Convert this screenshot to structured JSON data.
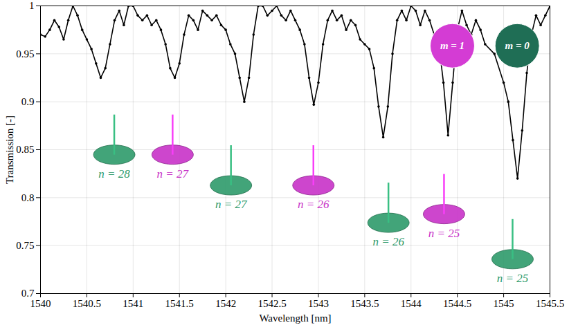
{
  "chart_data": {
    "type": "line",
    "x_label": "Wavelength [nm]",
    "y_label": "Transmission [-]",
    "xlim": [
      1540,
      1545.5
    ],
    "ylim": [
      0.7,
      1
    ],
    "xticks": [
      1540,
      1540.5,
      1541,
      1541.5,
      1542,
      1542.5,
      1543,
      1543.5,
      1544,
      1544.5,
      1545,
      1545.5
    ],
    "yticks": [
      0.7,
      0.75,
      0.8,
      0.85,
      0.9,
      0.95,
      1
    ],
    "grid": true,
    "series": [
      {
        "color": "#000000",
        "marker": "circle",
        "x": [
          1540.0,
          1540.05,
          1540.1,
          1540.15,
          1540.2,
          1540.25,
          1540.3,
          1540.35,
          1540.4,
          1540.45,
          1540.5,
          1540.55,
          1540.6,
          1540.65,
          1540.7,
          1540.75,
          1540.8,
          1540.85,
          1540.9,
          1540.95,
          1541.0,
          1541.05,
          1541.1,
          1541.15,
          1541.2,
          1541.25,
          1541.3,
          1541.35,
          1541.4,
          1541.45,
          1541.5,
          1541.55,
          1541.6,
          1541.65,
          1541.7,
          1541.75,
          1541.8,
          1541.85,
          1541.9,
          1541.95,
          1542.0,
          1542.05,
          1542.1,
          1542.15,
          1542.2,
          1542.25,
          1542.3,
          1542.35,
          1542.4,
          1542.45,
          1542.5,
          1542.55,
          1542.6,
          1542.65,
          1542.7,
          1542.75,
          1542.8,
          1542.85,
          1542.9,
          1542.95,
          1543.0,
          1543.05,
          1543.1,
          1543.15,
          1543.2,
          1543.25,
          1543.3,
          1543.35,
          1543.4,
          1543.45,
          1543.5,
          1543.55,
          1543.6,
          1543.65,
          1543.7,
          1543.75,
          1543.8,
          1543.85,
          1543.9,
          1543.95,
          1544.0,
          1544.05,
          1544.1,
          1544.15,
          1544.2,
          1544.25,
          1544.3,
          1544.35,
          1544.4,
          1544.45,
          1544.5,
          1544.55,
          1544.6,
          1544.65,
          1544.7,
          1544.75,
          1544.8,
          1544.9,
          1545.0,
          1545.05,
          1545.1,
          1545.15,
          1545.2,
          1545.25,
          1545.3,
          1545.35,
          1545.4,
          1545.45,
          1545.5
        ],
        "values": [
          0.97,
          0.968,
          0.975,
          0.985,
          0.978,
          0.965,
          0.985,
          1.0,
          0.99,
          0.975,
          0.965,
          0.955,
          0.94,
          0.925,
          0.935,
          0.96,
          0.985,
          0.995,
          0.98,
          1.0,
          1.0,
          0.99,
          0.985,
          0.99,
          0.98,
          0.985,
          0.975,
          0.96,
          0.935,
          0.925,
          0.94,
          0.97,
          0.99,
          0.985,
          0.975,
          0.995,
          0.99,
          0.985,
          0.99,
          0.98,
          0.975,
          0.96,
          0.95,
          0.925,
          0.9,
          0.925,
          0.97,
          1.0,
          1.0,
          0.99,
          0.995,
          1.0,
          0.99,
          0.985,
          0.995,
          0.985,
          0.975,
          0.96,
          0.925,
          0.897,
          0.92,
          0.96,
          0.985,
          0.995,
          0.985,
          0.99,
          0.975,
          0.985,
          0.98,
          0.965,
          0.96,
          0.955,
          0.935,
          0.895,
          0.863,
          0.895,
          0.95,
          0.985,
          0.995,
          0.985,
          1.0,
          0.995,
          0.98,
          0.995,
          0.985,
          0.97,
          0.96,
          0.92,
          0.865,
          0.92,
          0.975,
          0.995,
          0.98,
          0.97,
          0.985,
          0.975,
          0.96,
          0.95,
          0.92,
          0.9,
          0.86,
          0.82,
          0.87,
          0.93,
          0.97,
          0.99,
          0.98,
          0.99,
          1.0
        ]
      }
    ],
    "annotations": [
      {
        "text": "n = 28",
        "x": 1540.8,
        "y": 0.825,
        "color": "#2e9a6a",
        "marker": "ellipse"
      },
      {
        "text": "n = 27",
        "x": 1541.43,
        "y": 0.825,
        "color": "#c832c8",
        "marker": "ellipse"
      },
      {
        "text": "n = 27",
        "x": 1542.06,
        "y": 0.793,
        "color": "#2e9a6a",
        "marker": "ellipse"
      },
      {
        "text": "n = 26",
        "x": 1542.95,
        "y": 0.793,
        "color": "#c832c8",
        "marker": "ellipse"
      },
      {
        "text": "n = 26",
        "x": 1543.76,
        "y": 0.754,
        "color": "#2e9a6a",
        "marker": "ellipse"
      },
      {
        "text": "n = 25",
        "x": 1544.36,
        "y": 0.763,
        "color": "#c832c8",
        "marker": "ellipse"
      },
      {
        "text": "n = 25",
        "x": 1545.1,
        "y": 0.716,
        "color": "#2e9a6a",
        "marker": "ellipse"
      },
      {
        "text": "m = 1",
        "x": 1544.45,
        "y": 0.958,
        "color": "#d43cd4",
        "marker": "disk"
      },
      {
        "text": "m = 0",
        "x": 1545.15,
        "y": 0.958,
        "color": "#1f6e55",
        "marker": "disk"
      }
    ]
  }
}
